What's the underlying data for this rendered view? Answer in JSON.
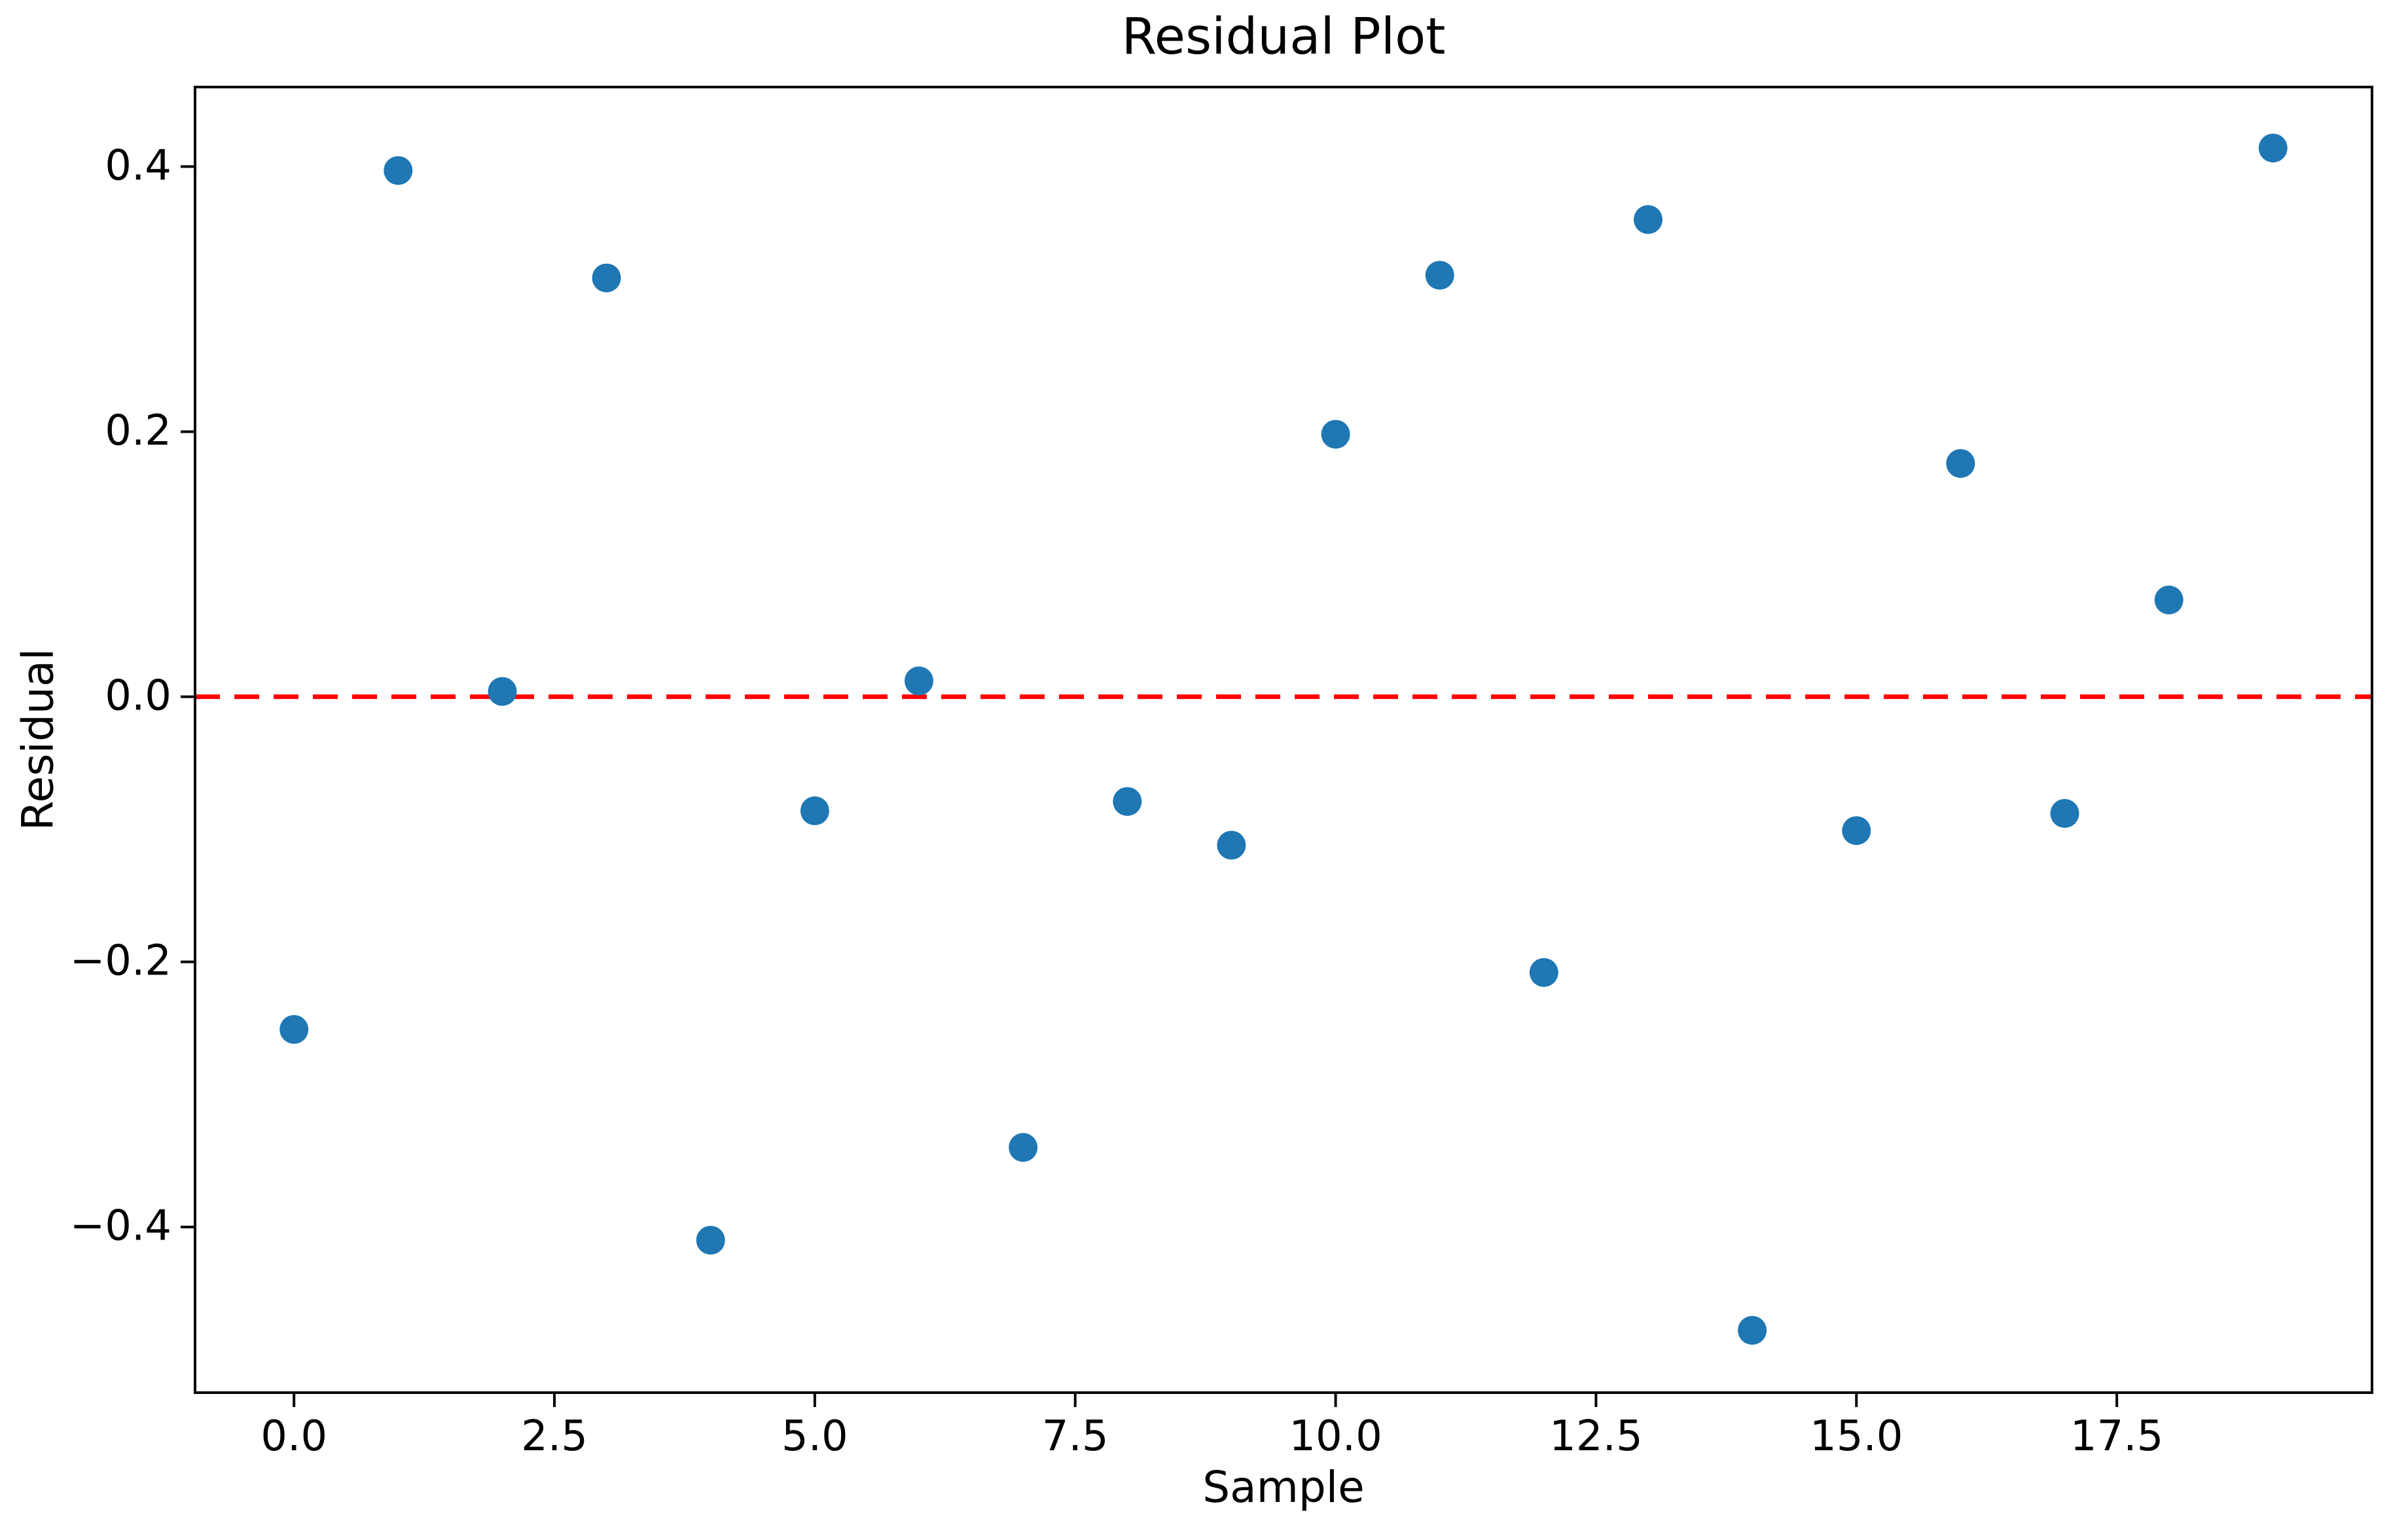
{
  "figure": {
    "title": "Residual Plot",
    "xlabel": "Sample",
    "ylabel": "Residual"
  },
  "chart_data": {
    "type": "scatter",
    "title": "Residual Plot",
    "xlabel": "Sample",
    "ylabel": "Residual",
    "x": [
      0,
      1,
      2,
      3,
      4,
      5,
      6,
      7,
      8,
      9,
      10,
      11,
      12,
      13,
      14,
      15,
      16,
      17,
      18,
      19
    ],
    "y": [
      -0.251,
      0.397,
      0.004,
      0.316,
      -0.41,
      -0.086,
      0.012,
      -0.34,
      -0.079,
      -0.112,
      0.198,
      0.318,
      -0.208,
      0.36,
      -0.478,
      -0.101,
      0.176,
      -0.088,
      0.073,
      0.414
    ],
    "marker_color": "#1f77b4",
    "marker_radius_px": 22,
    "reference_line": {
      "y": 0.0,
      "color": "#ff0000",
      "style": "dashed"
    },
    "xlim": [
      -0.95,
      19.95
    ],
    "ylim": [
      -0.525,
      0.46
    ],
    "x_tick_values": [
      0.0,
      2.5,
      5.0,
      7.5,
      10.0,
      12.5,
      15.0,
      17.5
    ],
    "x_tick_labels": [
      "0.0",
      "2.5",
      "5.0",
      "7.5",
      "10.0",
      "12.5",
      "15.0",
      "17.5"
    ],
    "y_tick_values": [
      0.4,
      0.2,
      0.0,
      -0.2,
      -0.4
    ],
    "y_tick_labels": [
      "0.4",
      "0.2",
      "0.0",
      "−0.2",
      "−0.4"
    ],
    "grid": false,
    "legend": null,
    "axis_color": "#000000"
  }
}
